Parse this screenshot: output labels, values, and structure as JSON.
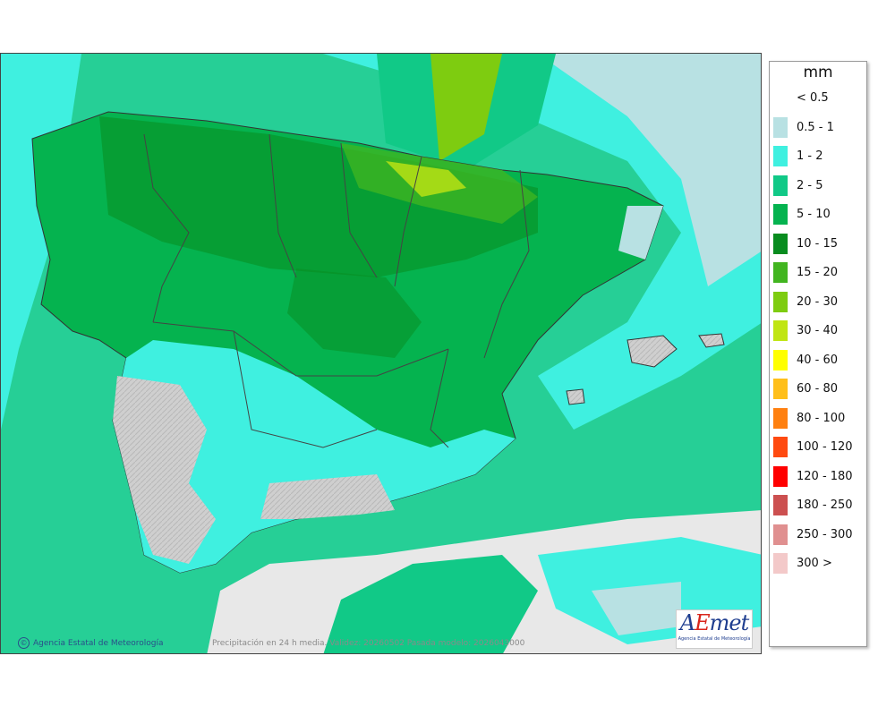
{
  "legend": {
    "unit": "mm",
    "items": [
      {
        "label": "< 0.5",
        "color": "#ffffff"
      },
      {
        "label": "0.5 - 1",
        "color": "#b8e1e3"
      },
      {
        "label": "1 - 2",
        "color": "#3ff0e0"
      },
      {
        "label": "2 - 5",
        "color": "#11c987"
      },
      {
        "label": "5 - 10",
        "color": "#05b34f"
      },
      {
        "label": "10 - 15",
        "color": "#088c1f"
      },
      {
        "label": "15 - 20",
        "color": "#42b520"
      },
      {
        "label": "20 - 30",
        "color": "#7ecc10"
      },
      {
        "label": "30 - 40",
        "color": "#c0e513"
      },
      {
        "label": "40 - 60",
        "color": "#ffff00"
      },
      {
        "label": "60 - 80",
        "color": "#ffbf1a"
      },
      {
        "label": "80 - 100",
        "color": "#ff8010"
      },
      {
        "label": "100 - 120",
        "color": "#ff4a10"
      },
      {
        "label": "120 - 180",
        "color": "#ff0000"
      },
      {
        "label": "180 - 250",
        "color": "#cc5050"
      },
      {
        "label": "250 - 300",
        "color": "#e09090"
      },
      {
        "label": "300 >",
        "color": "#f3c9c9"
      }
    ]
  },
  "footer": {
    "credit": "Agencia Estatal de Meteorología",
    "caption": "Precipitación en 24 h media. Validez: 20260502 Pasada modelo: 2026043000"
  },
  "logo": {
    "text": "AEmet",
    "subtitle": "Agencia Estatal de Meteorología"
  }
}
